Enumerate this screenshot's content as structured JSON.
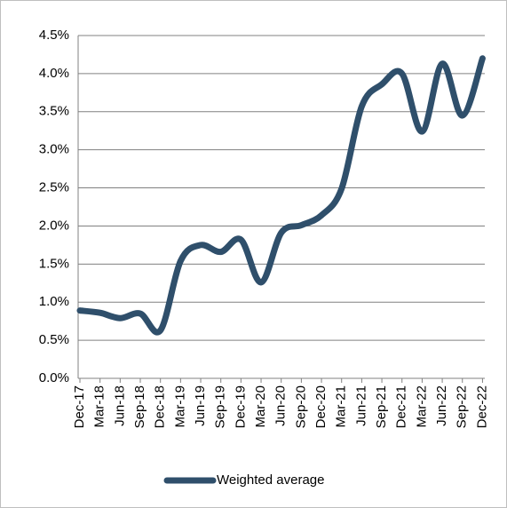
{
  "chart_data": {
    "type": "line",
    "x": [
      "Dec-17",
      "Mar-18",
      "Jun-18",
      "Sep-18",
      "Dec-18",
      "Mar-19",
      "Jun-19",
      "Sep-19",
      "Dec-19",
      "Mar-20",
      "Jun-20",
      "Sep-20",
      "Dec-20",
      "Mar-21",
      "Jun-21",
      "Sep-21",
      "Dec-21",
      "Mar-22",
      "Jun-22",
      "Sep-22",
      "Dec-22"
    ],
    "series": [
      {
        "name": "Weighted average",
        "color": "#2f4f6b",
        "values": [
          0.89,
          0.86,
          0.79,
          0.85,
          0.63,
          1.54,
          1.75,
          1.66,
          1.82,
          1.26,
          1.91,
          2.01,
          2.14,
          2.49,
          3.57,
          3.86,
          4.0,
          3.24,
          4.13,
          3.45,
          4.2
        ]
      }
    ],
    "ylim": [
      0,
      4.5
    ],
    "yticks": [
      {
        "value": 0,
        "label": "0.0%"
      },
      {
        "value": 0.5,
        "label": "0.5%"
      },
      {
        "value": 1,
        "label": "1.0%"
      },
      {
        "value": 1.5,
        "label": "1.5%"
      },
      {
        "value": 2,
        "label": "2.0%"
      },
      {
        "value": 2.5,
        "label": "2.5%"
      },
      {
        "value": 3,
        "label": "3.0%"
      },
      {
        "value": 3.5,
        "label": "3.5%"
      },
      {
        "value": 4,
        "label": "4.0%"
      },
      {
        "value": 4.5,
        "label": "4.5%"
      }
    ],
    "grid": true,
    "legend": "bottom"
  }
}
